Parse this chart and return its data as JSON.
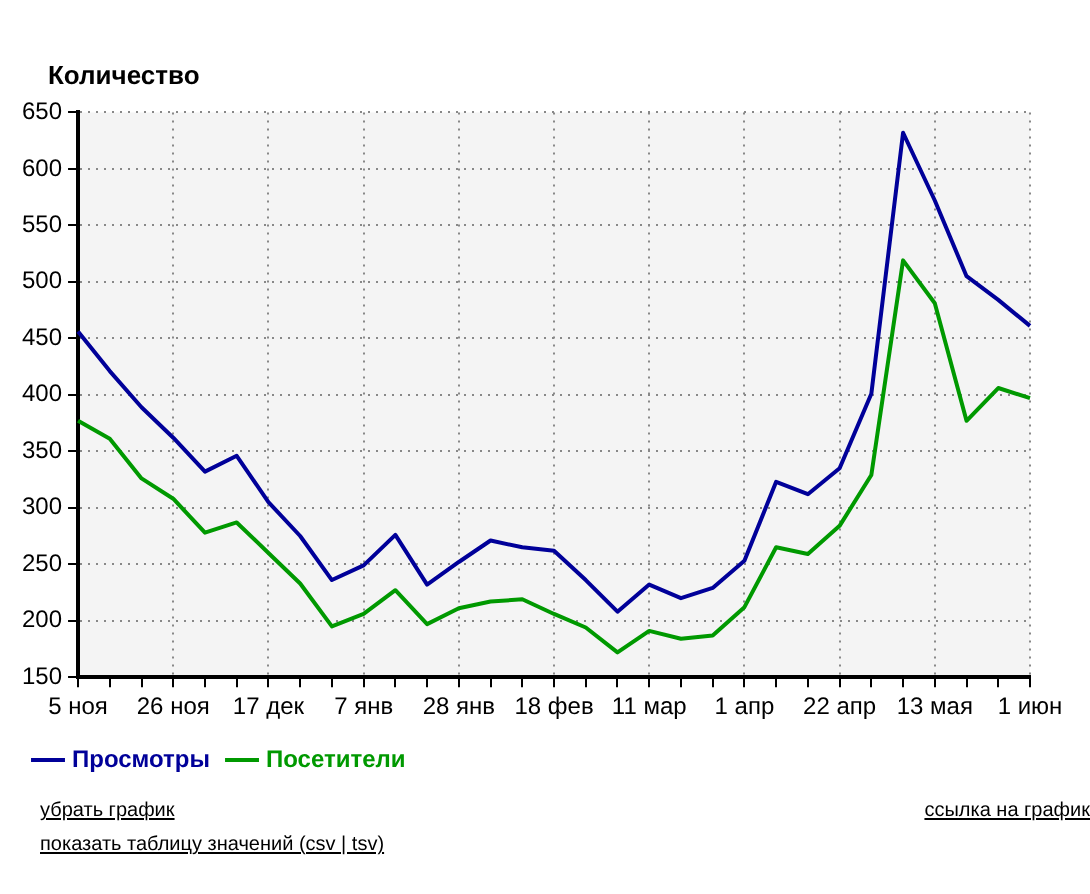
{
  "chart_data": {
    "type": "line",
    "ylabel": "Количество",
    "categories": [
      "5 ноя",
      null,
      null,
      "26 ноя",
      null,
      null,
      "17 дек",
      null,
      null,
      "7 янв",
      null,
      null,
      "28 янв",
      null,
      null,
      "18 фев",
      null,
      null,
      "11 мар",
      null,
      null,
      "1 апр",
      null,
      null,
      "22 апр",
      null,
      null,
      "13 мая",
      null,
      null,
      "1 июн"
    ],
    "series": [
      {
        "name": "Просмотры",
        "color": "#000099",
        "values": [
          456,
          421,
          389,
          362,
          332,
          346,
          305,
          275,
          236,
          249,
          276,
          232,
          252,
          271,
          265,
          262,
          236,
          208,
          232,
          220,
          229,
          253,
          323,
          312,
          335,
          401,
          632,
          572,
          505,
          484,
          461
        ]
      },
      {
        "name": "Посетители",
        "color": "#009900",
        "values": [
          377,
          361,
          326,
          308,
          278,
          287,
          260,
          233,
          195,
          206,
          227,
          197,
          211,
          217,
          219,
          206,
          194,
          172,
          191,
          184,
          187,
          212,
          265,
          259,
          284,
          329,
          519,
          481,
          377,
          406,
          397
        ]
      }
    ],
    "ylim": [
      150,
      650
    ],
    "yticks": [
      150,
      200,
      250,
      300,
      350,
      400,
      450,
      500,
      550,
      600,
      650
    ],
    "grid": true,
    "legend": "bottom left",
    "marker": "none",
    "line_style": "solid",
    "annotations": [
      "убрать график",
      "ссылка на график",
      "показать таблицу значений (csv | tsv)"
    ]
  }
}
